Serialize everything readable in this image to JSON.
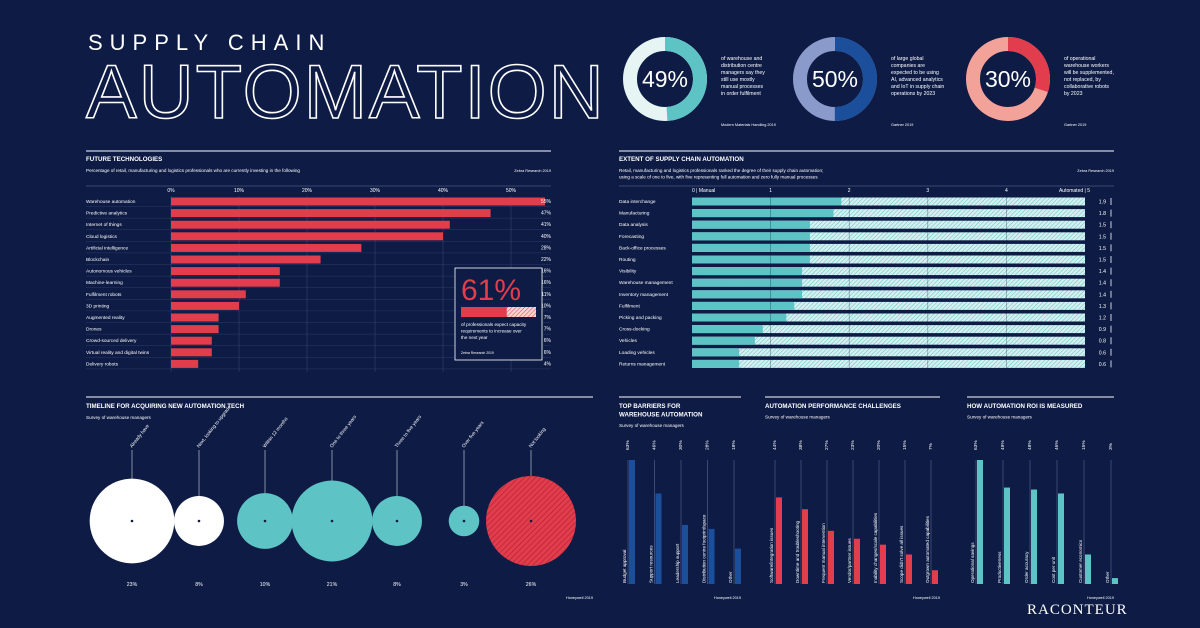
{
  "header": {
    "title_small": "SUPPLY CHAIN",
    "title_big": "AUTOMATION"
  },
  "stats": [
    {
      "value": "49%",
      "pct": 49,
      "lines": [
        "of warehouse and",
        "distribution centre",
        "managers say they",
        "still use mostly",
        "manual processes",
        "in order fulfilment"
      ],
      "source": "Modern Materials Handling 2019",
      "fg": "#5ec3c5",
      "bg": "#e6f4f4"
    },
    {
      "value": "50%",
      "pct": 50,
      "lines": [
        "of large global",
        "companies are",
        "expected to be using",
        "AI, advanced analytics",
        "and IoT in supply chain",
        "operations by 2023"
      ],
      "source": "Gartner 2019",
      "fg": "#1b4f9c",
      "bg": "#8a9acb"
    },
    {
      "value": "30%",
      "pct": 30,
      "lines": [
        "of operational",
        "warehouse workers",
        "will be supplemented,",
        "not replaced, by",
        "collaborative robots",
        "by 2023"
      ],
      "source": "Gartner 2019",
      "fg": "#e23d4d",
      "bg": "#f3a29a"
    }
  ],
  "colors": {
    "background": "#0d1b45",
    "red": "#e23d4d",
    "teal": "#5ec3c5",
    "blue": "#1b4f9c",
    "white": "#ffffff"
  },
  "chart_data": [
    {
      "type": "bar",
      "title": "FUTURE TECHNOLOGIES",
      "subtitle": "Percentage of retail, manufacturing and logistics professionals who are currently investing in the following",
      "source": "Zebra Research 2019",
      "xlim": [
        0,
        55
      ],
      "ticks": [
        "0%",
        "10%",
        "20%",
        "30%",
        "40%",
        "50%"
      ],
      "categories": [
        "Warehouse automation",
        "Predictive analytics",
        "Internet of things",
        "Cloud logistics",
        "Artificial intelligence",
        "Blockchain",
        "Autonomous vehicles",
        "Machine-learning",
        "Fulfilment robots",
        "3D printing",
        "Augmented reality",
        "Drones",
        "Crowd-sourced delivery",
        "Virtual reality and digital twins",
        "Delivery robots"
      ],
      "values": [
        55,
        47,
        41,
        40,
        28,
        22,
        16,
        16,
        11,
        10,
        7,
        7,
        6,
        6,
        4
      ],
      "labels": [
        "55%",
        "47%",
        "41%",
        "40%",
        "28%",
        "22%",
        "16%",
        "16%",
        "11%",
        "10%",
        "7%",
        "7%",
        "6%",
        "6%",
        "4%"
      ],
      "callout": {
        "value": "61%",
        "pct": 61,
        "lines": [
          "of professionals expect capacity",
          "requirements to increase over",
          "the next year"
        ],
        "source": "Zebra Research 2019"
      }
    },
    {
      "type": "bar",
      "title": "EXTENT OF SUPPLY CHAIN AUTOMATION",
      "subtitle": [
        "Retail, manufacturing and logistics professionals ranked the degree of their supply chain automation;",
        "using a scale of one to five, with five representing full automation and zero fully manual processes"
      ],
      "source": "Zebra Research 2019",
      "xlim": [
        0,
        5
      ],
      "ticks": [
        "0 | Manual",
        "1",
        "2",
        "3",
        "4",
        "Automated | 5"
      ],
      "categories": [
        "Data interchange",
        "Manufacturing",
        "Data analysis",
        "Forecasting",
        "Back-office processes",
        "Routing",
        "Visibility",
        "Warehouse management",
        "Inventory management",
        "Fulfilment",
        "Picking and packing",
        "Cross-docking",
        "Vehicles",
        "Loading vehicles",
        "Returns management"
      ],
      "values": [
        1.9,
        1.8,
        1.5,
        1.5,
        1.5,
        1.5,
        1.4,
        1.4,
        1.4,
        1.3,
        1.2,
        0.9,
        0.8,
        0.6,
        0.6
      ]
    },
    {
      "type": "scatter",
      "title": "TIMELINE FOR ACQUIRING NEW AUTOMATION TECH",
      "subtitle": "Survey of warehouse managers",
      "source": "Honeywell 2019",
      "categories": [
        "Already have",
        "Next, looking to upgrade",
        "Within 12 months",
        "One to three years",
        "Three to five years",
        "Over five years",
        "Not looking"
      ],
      "values": [
        23,
        8,
        10,
        21,
        8,
        3,
        26
      ],
      "labels": [
        "23%",
        "8%",
        "10%",
        "21%",
        "8%",
        "3%",
        "26%"
      ],
      "colors": [
        "#ffffff",
        "#ffffff",
        "#5ec3c5",
        "#5ec3c5",
        "#5ec3c5",
        "#5ec3c5",
        "#e23d4d"
      ]
    },
    {
      "type": "bar",
      "title": [
        "TOP BARRIERS FOR",
        "WAREHOUSE AUTOMATION"
      ],
      "subtitle": "Survey of warehouse managers",
      "source": "Honeywell 2019",
      "color": "#1b4f9c",
      "categories": [
        "Budget approval",
        "Support resources",
        "Leadership support",
        "Distribution centre footprint/space",
        "Other"
      ],
      "values": [
        63,
        46,
        30,
        28,
        18
      ],
      "labels": [
        "63%",
        "46%",
        "30%",
        "28%",
        "18%"
      ]
    },
    {
      "type": "bar",
      "title": "AUTOMATION PERFORMANCE CHALLENGES",
      "subtitle": "Survey of warehouse managers",
      "source": "Honeywell 2019",
      "color": "#e23d4d",
      "categories": [
        "Software/integration issues",
        "Downtime and troubleshooting",
        "Frequent manual intervention",
        "Vendor/partner issues",
        "Inability changes/scale capabilities",
        "Scope didn't solve all issues",
        "Outgrown automated capabilities"
      ],
      "values": [
        44,
        38,
        27,
        23,
        20,
        15,
        7
      ],
      "labels": [
        "44%",
        "38%",
        "27%",
        "23%",
        "20%",
        "15%",
        "7%"
      ]
    },
    {
      "type": "bar",
      "title": "HOW AUTOMATION ROI IS MEASURED",
      "subtitle": "Survey of warehouse managers",
      "source": "Honeywell 2019",
      "color": "#5ec3c5",
      "categories": [
        "Operational savings",
        "Productiveness",
        "Order accuracy",
        "Cost per unit",
        "Customer economics",
        "Other"
      ],
      "values": [
        63,
        49,
        48,
        46,
        15,
        3
      ],
      "labels": [
        "63%",
        "49%",
        "48%",
        "46%",
        "15%",
        "3%"
      ]
    }
  ],
  "brand": "RACONTEUR"
}
